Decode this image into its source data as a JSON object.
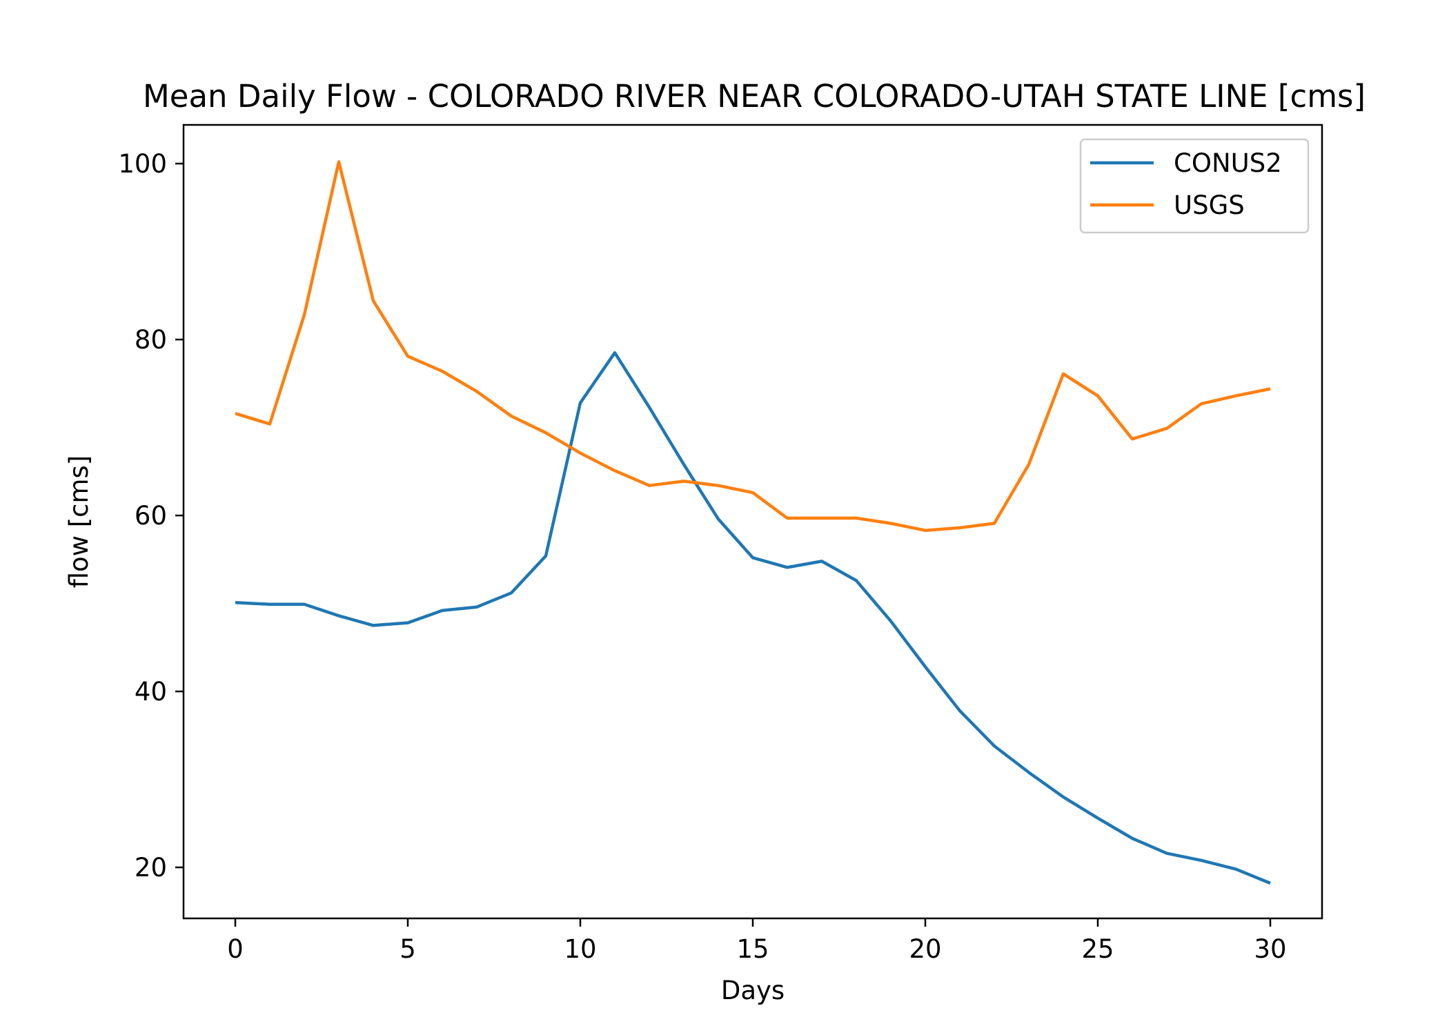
{
  "chart_data": {
    "type": "line",
    "title": "Mean Daily Flow - COLORADO RIVER NEAR COLORADO-UTAH STATE LINE [cms]",
    "xlabel": "Days",
    "ylabel": "flow [cms]",
    "xlim": [
      -1.5,
      31.5
    ],
    "ylim": [
      14.2,
      104.4
    ],
    "xticks": [
      0,
      5,
      10,
      15,
      20,
      25,
      30
    ],
    "yticks": [
      20,
      40,
      60,
      80,
      100
    ],
    "grid": false,
    "legend_position": "upper right",
    "x": [
      0,
      1,
      2,
      3,
      4,
      5,
      6,
      7,
      8,
      9,
      10,
      11,
      12,
      13,
      14,
      15,
      16,
      17,
      18,
      19,
      20,
      21,
      22,
      23,
      24,
      25,
      26,
      27,
      28,
      29,
      30
    ],
    "series": [
      {
        "name": "CONUS2",
        "color": "#1f77b4",
        "values": [
          50.1,
          49.9,
          49.9,
          48.6,
          47.5,
          47.8,
          49.2,
          49.6,
          51.2,
          55.4,
          72.8,
          78.5,
          72.3,
          65.8,
          59.6,
          55.2,
          54.1,
          54.8,
          52.6,
          48.0,
          42.8,
          37.8,
          33.8,
          30.8,
          28.0,
          25.6,
          23.3,
          21.6,
          20.8,
          19.8,
          18.2
        ]
      },
      {
        "name": "USGS",
        "color": "#ff7f0e",
        "values": [
          71.6,
          70.4,
          82.8,
          100.2,
          84.4,
          78.1,
          76.4,
          74.1,
          71.3,
          69.4,
          67.1,
          65.1,
          63.4,
          63.9,
          63.4,
          62.6,
          59.7,
          59.7,
          59.7,
          59.1,
          58.3,
          58.6,
          59.1,
          65.8,
          76.1,
          73.6,
          68.7,
          69.9,
          72.7,
          73.6,
          74.4
        ]
      }
    ]
  }
}
